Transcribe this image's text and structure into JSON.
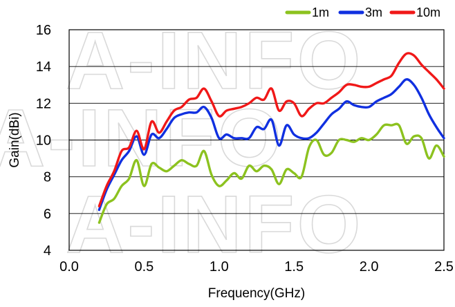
{
  "watermark": "A-INFO",
  "chart_data": {
    "type": "line",
    "xlabel": "Frequency(GHz)",
    "ylabel": "Gain(dBi)",
    "xlim": [
      0.0,
      2.5
    ],
    "ylim": [
      4,
      16
    ],
    "xticks": [
      0.0,
      0.5,
      1.0,
      1.5,
      2.0,
      2.5
    ],
    "xtick_labels": [
      "0.0",
      "0.5",
      "1.0",
      "1.5",
      "2.0",
      "2.5"
    ],
    "yticks": [
      4,
      6,
      8,
      10,
      12,
      14,
      16
    ],
    "ytick_labels": [
      "4",
      "6",
      "8",
      "10",
      "12",
      "14",
      "16"
    ],
    "grid": "horizontal",
    "legend_position": "top-right",
    "series": [
      {
        "name": "1m",
        "color": "#8cc21f",
        "x": [
          0.2,
          0.25,
          0.3,
          0.35,
          0.4,
          0.45,
          0.5,
          0.55,
          0.6,
          0.65,
          0.7,
          0.75,
          0.8,
          0.85,
          0.9,
          0.95,
          1.0,
          1.05,
          1.1,
          1.15,
          1.2,
          1.25,
          1.3,
          1.35,
          1.4,
          1.45,
          1.5,
          1.55,
          1.6,
          1.65,
          1.7,
          1.75,
          1.8,
          1.85,
          1.9,
          1.95,
          2.0,
          2.05,
          2.1,
          2.15,
          2.2,
          2.25,
          2.3,
          2.35,
          2.4,
          2.45,
          2.5
        ],
        "y": [
          5.5,
          6.5,
          6.8,
          7.5,
          7.9,
          8.9,
          7.5,
          8.7,
          8.5,
          8.3,
          8.6,
          8.9,
          8.7,
          8.6,
          9.4,
          8.1,
          7.5,
          7.8,
          8.2,
          7.9,
          8.6,
          8.3,
          8.6,
          8.4,
          7.6,
          8.4,
          8.2,
          8.0,
          9.6,
          10.0,
          9.2,
          9.3,
          10.0,
          10.0,
          9.9,
          10.1,
          10.0,
          10.3,
          10.8,
          10.8,
          10.8,
          9.8,
          10.2,
          10.1,
          9.0,
          9.7,
          9.1
        ]
      },
      {
        "name": "3m",
        "color": "#1030e0",
        "x": [
          0.2,
          0.25,
          0.3,
          0.35,
          0.4,
          0.45,
          0.5,
          0.55,
          0.6,
          0.65,
          0.7,
          0.75,
          0.8,
          0.85,
          0.9,
          0.95,
          1.0,
          1.05,
          1.1,
          1.15,
          1.2,
          1.25,
          1.3,
          1.35,
          1.4,
          1.45,
          1.5,
          1.55,
          1.6,
          1.65,
          1.7,
          1.75,
          1.8,
          1.85,
          1.9,
          1.95,
          2.0,
          2.05,
          2.1,
          2.15,
          2.2,
          2.25,
          2.3,
          2.35,
          2.4,
          2.45,
          2.5
        ],
        "y": [
          6.2,
          7.3,
          8.1,
          8.9,
          9.4,
          10.2,
          9.2,
          10.3,
          10.1,
          10.6,
          11.2,
          11.4,
          11.5,
          11.5,
          11.8,
          11.2,
          10.1,
          10.3,
          10.1,
          10.1,
          10.1,
          10.7,
          10.6,
          11.1,
          9.7,
          10.8,
          10.3,
          10.1,
          10.1,
          10.4,
          10.9,
          11.4,
          11.7,
          12.1,
          11.9,
          11.8,
          11.8,
          12.1,
          12.3,
          12.5,
          12.9,
          13.3,
          13.0,
          12.3,
          11.4,
          10.7,
          10.1
        ]
      },
      {
        "name": "10m",
        "color": "#f01818",
        "x": [
          0.2,
          0.25,
          0.3,
          0.35,
          0.4,
          0.45,
          0.5,
          0.55,
          0.6,
          0.65,
          0.7,
          0.75,
          0.8,
          0.85,
          0.9,
          0.95,
          1.0,
          1.05,
          1.1,
          1.15,
          1.2,
          1.25,
          1.3,
          1.35,
          1.4,
          1.45,
          1.5,
          1.55,
          1.6,
          1.65,
          1.7,
          1.75,
          1.8,
          1.85,
          1.9,
          1.95,
          2.0,
          2.05,
          2.1,
          2.15,
          2.2,
          2.25,
          2.3,
          2.35,
          2.4,
          2.45,
          2.5
        ],
        "y": [
          6.4,
          7.5,
          8.3,
          9.4,
          9.6,
          10.5,
          9.5,
          11.0,
          10.4,
          11.0,
          11.6,
          11.8,
          12.2,
          12.3,
          12.8,
          12.1,
          11.3,
          11.6,
          11.7,
          11.8,
          12.0,
          12.3,
          12.2,
          12.8,
          11.6,
          12.1,
          12.0,
          11.3,
          11.7,
          12.0,
          12.0,
          12.3,
          12.6,
          13.0,
          13.0,
          12.9,
          12.9,
          13.1,
          13.3,
          13.5,
          14.2,
          14.7,
          14.6,
          14.1,
          13.7,
          13.3,
          12.8
        ]
      }
    ]
  }
}
